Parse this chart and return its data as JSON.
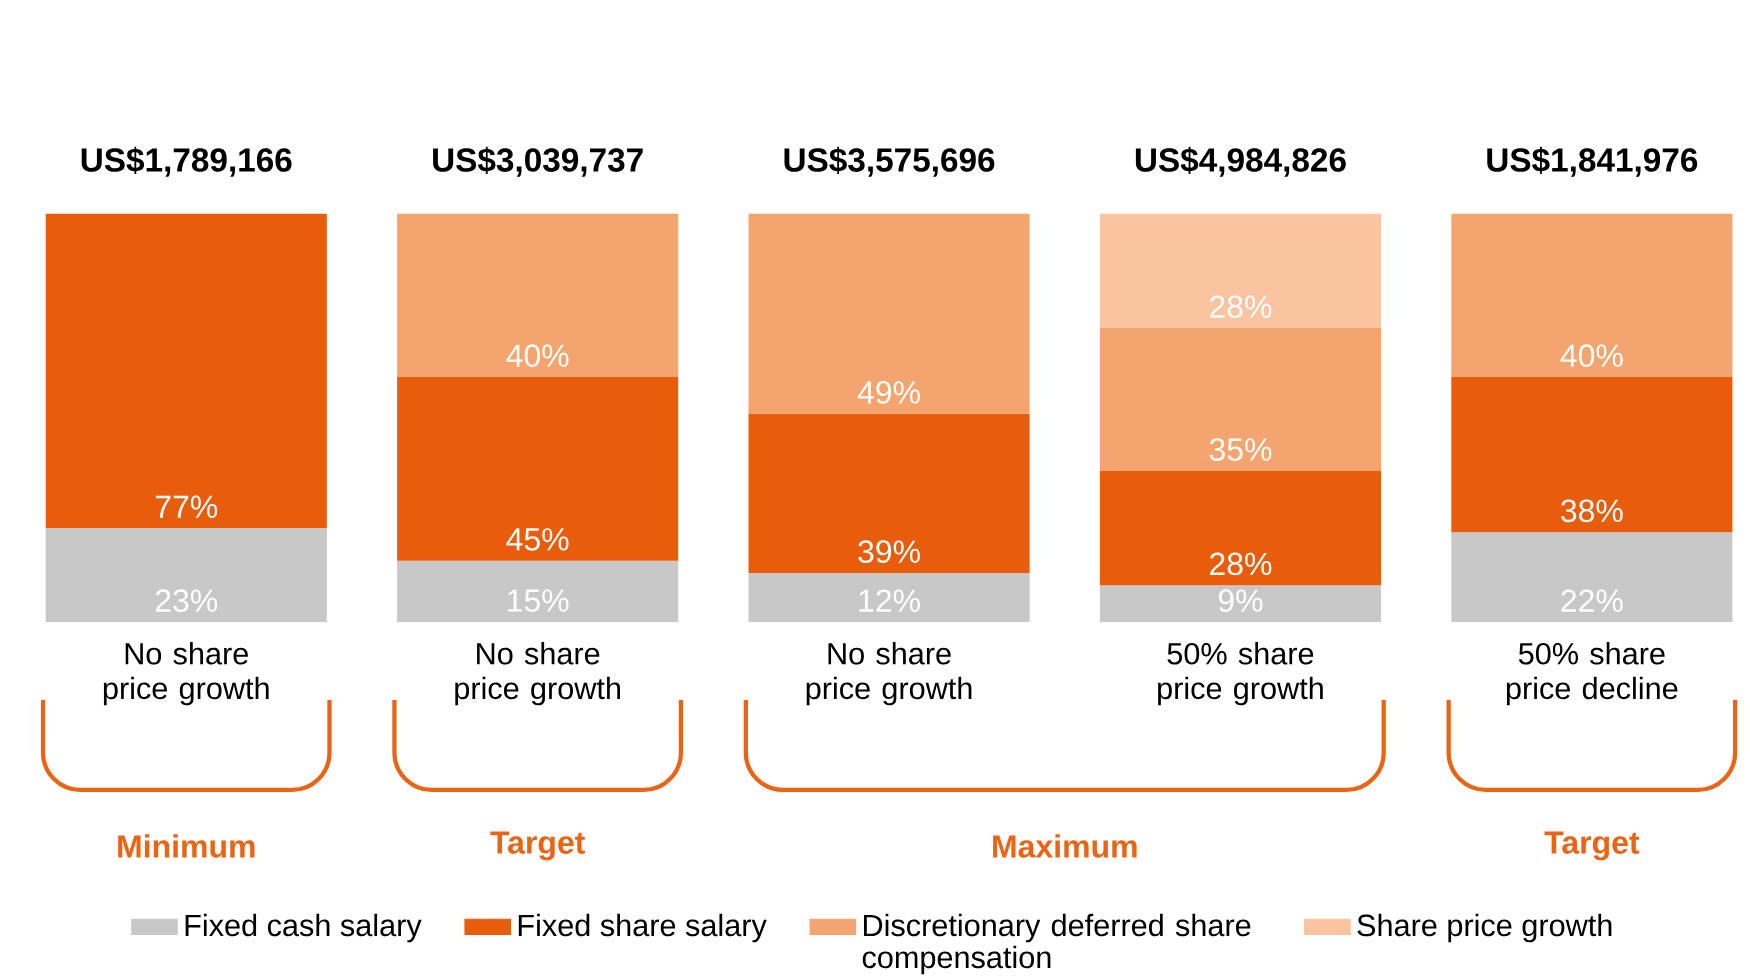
{
  "chart_data": {
    "type": "bar",
    "stacked": true,
    "categories": [
      "No share price growth",
      "No share price growth",
      "No share price growth",
      "50% share price growth",
      "50% share price decline"
    ],
    "series": [
      {
        "name": "Fixed cash salary",
        "color": "#c8c8c8",
        "values": [
          23,
          15,
          12,
          9,
          22
        ],
        "value_labels": [
          "23%",
          "15%",
          "12%",
          "9%",
          "22%"
        ]
      },
      {
        "name": "Fixed share salary",
        "color": "#e85d0c",
        "values": [
          77,
          45,
          39,
          28,
          38
        ],
        "value_labels": [
          "77%",
          "45%",
          "39%",
          "28%",
          "38%"
        ]
      },
      {
        "name": "Discretionary deferred share compensation",
        "color": "#f4a46e",
        "values": [
          null,
          40,
          49,
          35,
          40
        ],
        "value_labels": [
          null,
          "40%",
          "49%",
          "35%",
          "40%"
        ]
      },
      {
        "name": "Share price growth",
        "color": "#fbc4a0",
        "values": [
          null,
          null,
          null,
          28,
          null
        ],
        "value_labels": [
          null,
          null,
          null,
          "28%",
          null
        ]
      }
    ],
    "totals": [
      "US$1,789,166",
      "US$3,039,737",
      "US$3,575,696",
      "US$4,984,826",
      "US$1,841,976"
    ],
    "annotations": [
      "Minimum",
      "Target",
      "Maximum",
      "Target"
    ],
    "legend": "bottom"
  }
}
